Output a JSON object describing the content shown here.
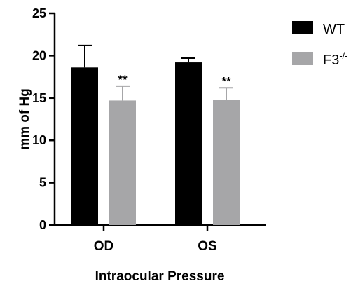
{
  "chart_data": {
    "type": "bar",
    "categories": [
      "OD",
      "OS"
    ],
    "series": [
      {
        "name": "WT",
        "values": [
          18.6,
          19.2
        ],
        "errors": [
          2.6,
          0.5
        ],
        "color": "#000000"
      },
      {
        "name": "F3-/-",
        "values": [
          14.7,
          14.8
        ],
        "errors": [
          1.7,
          1.4
        ],
        "color": "#a6a6a8"
      }
    ],
    "annotations": [
      {
        "category": "OD",
        "series": "F3-/-",
        "text": "**"
      },
      {
        "category": "OS",
        "series": "F3-/-",
        "text": "**"
      }
    ],
    "title": "",
    "xlabel": "Intraocular Pressure",
    "ylabel": "mm of Hg",
    "ylim": [
      0,
      25
    ],
    "yticks": [
      "0",
      "5",
      "10",
      "15",
      "20",
      "25"
    ],
    "grid": false,
    "legend_position": "top-right",
    "legend": {
      "entries": [
        {
          "base": "WT",
          "sup": ""
        },
        {
          "base": "F3",
          "sup": "-/-"
        }
      ]
    }
  }
}
